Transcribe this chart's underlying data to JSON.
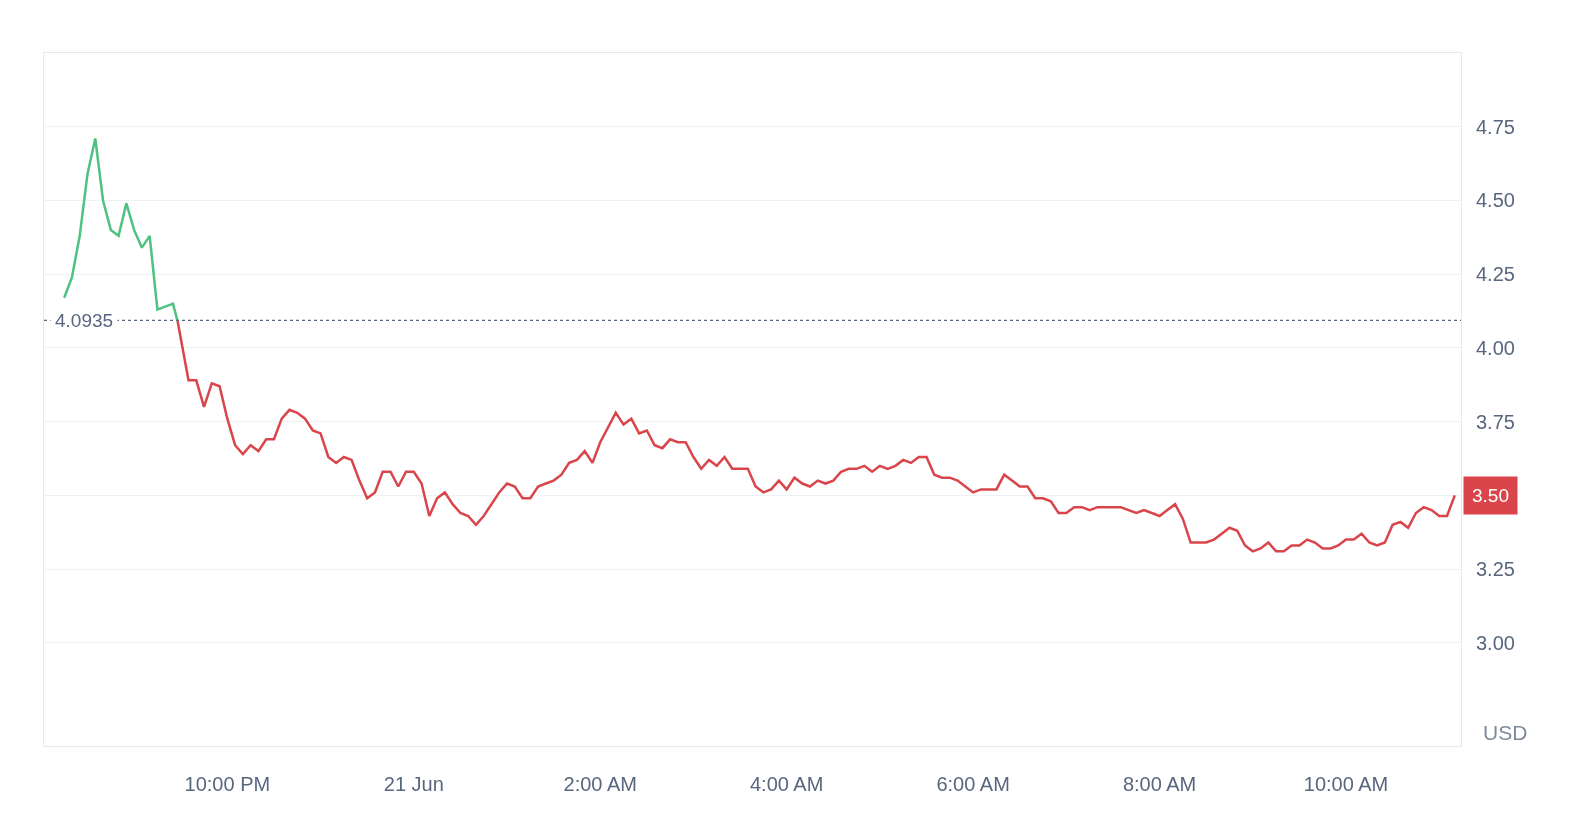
{
  "chart_data": {
    "type": "line",
    "series": [
      {
        "color": "#4fc281",
        "x": [
          "--06-20T20:15",
          "--06-20T20:20",
          "--06-20T20:25",
          "--06-20T20:30",
          "--06-20T20:35",
          "--06-20T20:40",
          "--06-20T20:45",
          "--06-20T20:50",
          "--06-20T20:55",
          "--06-20T21:00",
          "--06-20T21:05",
          "--06-20T21:10",
          "--06-20T21:15",
          "--06-20T21:20",
          "--06-20T21:25",
          "--06-20T21:28"
        ],
        "values": [
          4.17,
          4.24,
          4.38,
          4.59,
          4.71,
          4.5,
          4.4,
          4.38,
          4.49,
          4.4,
          4.34,
          4.38,
          4.13,
          4.14,
          4.15,
          4.09
        ]
      },
      {
        "color": "#d9454a",
        "x": [
          "--06-20T21:28",
          "--06-20T21:35",
          "--06-20T21:40",
          "--06-20T21:45",
          "--06-20T21:50",
          "--06-20T21:55",
          "--06-20T22:00",
          "--06-20T22:05",
          "--06-20T22:10",
          "--06-20T22:15",
          "--06-20T22:20",
          "--06-20T22:25",
          "--06-20T22:30",
          "--06-20T22:35",
          "--06-20T22:40",
          "--06-20T22:45",
          "--06-20T22:50",
          "--06-20T22:55",
          "--06-20T23:00",
          "--06-20T23:05",
          "--06-20T23:10",
          "--06-20T23:15",
          "--06-20T23:20",
          "--06-20T23:25",
          "--06-20T23:30",
          "--06-20T23:35",
          "--06-20T23:40",
          "--06-20T23:45",
          "--06-20T23:50",
          "--06-20T23:55",
          "--06-21T00:00",
          "--06-21T00:05",
          "--06-21T00:10",
          "--06-21T00:15",
          "--06-21T00:20",
          "--06-21T00:25",
          "--06-21T00:30",
          "--06-21T00:35",
          "--06-21T00:40",
          "--06-21T00:45",
          "--06-21T00:50",
          "--06-21T00:55",
          "--06-21T01:00",
          "--06-21T01:05",
          "--06-21T01:10",
          "--06-21T01:15",
          "--06-21T01:20",
          "--06-21T01:25",
          "--06-21T01:30",
          "--06-21T01:35",
          "--06-21T01:40",
          "--06-21T01:45",
          "--06-21T01:50",
          "--06-21T01:55",
          "--06-21T02:00",
          "--06-21T02:05",
          "--06-21T02:10",
          "--06-21T02:15",
          "--06-21T02:20",
          "--06-21T02:25",
          "--06-21T02:30",
          "--06-21T02:35",
          "--06-21T02:40",
          "--06-21T02:45",
          "--06-21T02:50",
          "--06-21T02:55",
          "--06-21T03:00",
          "--06-21T03:05",
          "--06-21T03:10",
          "--06-21T03:15",
          "--06-21T03:20",
          "--06-21T03:25",
          "--06-21T03:30",
          "--06-21T03:35",
          "--06-21T03:40",
          "--06-21T03:45",
          "--06-21T03:50",
          "--06-21T03:55",
          "--06-21T04:00",
          "--06-21T04:05",
          "--06-21T04:10",
          "--06-21T04:15",
          "--06-21T04:20",
          "--06-21T04:25",
          "--06-21T04:30",
          "--06-21T04:35",
          "--06-21T04:40",
          "--06-21T04:45",
          "--06-21T04:50",
          "--06-21T04:55",
          "--06-21T05:00",
          "--06-21T05:05",
          "--06-21T05:10",
          "--06-21T05:15",
          "--06-21T05:20",
          "--06-21T05:25",
          "--06-21T05:30",
          "--06-21T05:35",
          "--06-21T05:40",
          "--06-21T05:45",
          "--06-21T05:50",
          "--06-21T05:55",
          "--06-21T06:00",
          "--06-21T06:05",
          "--06-21T06:10",
          "--06-21T06:15",
          "--06-21T06:20",
          "--06-21T06:25",
          "--06-21T06:30",
          "--06-21T06:35",
          "--06-21T06:40",
          "--06-21T06:45",
          "--06-21T06:50",
          "--06-21T06:55",
          "--06-21T07:00",
          "--06-21T07:05",
          "--06-21T07:10",
          "--06-21T07:15",
          "--06-21T07:20",
          "--06-21T07:25",
          "--06-21T07:30",
          "--06-21T07:35",
          "--06-21T07:40",
          "--06-21T07:45",
          "--06-21T07:50",
          "--06-21T07:55",
          "--06-21T08:00",
          "--06-21T08:05",
          "--06-21T08:10",
          "--06-21T08:15",
          "--06-21T08:20",
          "--06-21T08:25",
          "--06-21T08:30",
          "--06-21T08:35",
          "--06-21T08:40",
          "--06-21T08:45",
          "--06-21T08:50",
          "--06-21T08:55",
          "--06-21T09:00",
          "--06-21T09:05",
          "--06-21T09:10",
          "--06-21T09:15",
          "--06-21T09:20",
          "--06-21T09:25",
          "--06-21T09:30",
          "--06-21T09:35",
          "--06-21T09:40",
          "--06-21T09:45",
          "--06-21T09:50",
          "--06-21T09:55",
          "--06-21T10:00",
          "--06-21T10:05",
          "--06-21T10:10",
          "--06-21T10:15",
          "--06-21T10:20",
          "--06-21T10:25",
          "--06-21T10:30",
          "--06-21T10:35",
          "--06-21T10:40",
          "--06-21T10:45",
          "--06-21T10:50",
          "--06-21T10:55",
          "--06-21T11:00",
          "--06-21T11:05",
          "--06-21T11:10"
        ],
        "values": [
          4.09,
          3.89,
          3.89,
          3.8,
          3.88,
          3.87,
          3.76,
          3.67,
          3.64,
          3.67,
          3.65,
          3.69,
          3.69,
          3.76,
          3.79,
          3.78,
          3.76,
          3.72,
          3.71,
          3.63,
          3.61,
          3.63,
          3.62,
          3.55,
          3.49,
          3.51,
          3.58,
          3.58,
          3.53,
          3.58,
          3.58,
          3.54,
          3.43,
          3.49,
          3.51,
          3.47,
          3.44,
          3.43,
          3.4,
          3.43,
          3.47,
          3.51,
          3.54,
          3.53,
          3.49,
          3.49,
          3.53,
          3.54,
          3.55,
          3.57,
          3.61,
          3.62,
          3.65,
          3.61,
          3.68,
          3.73,
          3.78,
          3.74,
          3.76,
          3.71,
          3.72,
          3.67,
          3.66,
          3.69,
          3.68,
          3.68,
          3.63,
          3.59,
          3.62,
          3.6,
          3.63,
          3.59,
          3.59,
          3.59,
          3.53,
          3.51,
          3.52,
          3.55,
          3.52,
          3.56,
          3.54,
          3.53,
          3.55,
          3.54,
          3.55,
          3.58,
          3.59,
          3.59,
          3.6,
          3.58,
          3.6,
          3.59,
          3.6,
          3.62,
          3.61,
          3.63,
          3.63,
          3.57,
          3.56,
          3.56,
          3.55,
          3.53,
          3.51,
          3.52,
          3.52,
          3.52,
          3.57,
          3.55,
          3.53,
          3.53,
          3.49,
          3.49,
          3.48,
          3.44,
          3.44,
          3.46,
          3.46,
          3.45,
          3.46,
          3.46,
          3.46,
          3.46,
          3.45,
          3.44,
          3.45,
          3.44,
          3.43,
          3.45,
          3.47,
          3.42,
          3.34,
          3.34,
          3.34,
          3.35,
          3.37,
          3.39,
          3.38,
          3.33,
          3.31,
          3.32,
          3.34,
          3.31,
          3.31,
          3.33,
          3.33,
          3.35,
          3.34,
          3.32,
          3.32,
          3.33,
          3.35,
          3.35,
          3.37,
          3.34,
          3.33,
          3.34,
          3.4,
          3.41,
          3.39,
          3.44,
          3.46,
          3.45,
          3.43,
          3.43,
          3.5
        ]
      }
    ],
    "xlim": [
      "--06-20T20:02",
      "--06-21T11:14"
    ],
    "xticks": [
      {
        "value": "--06-20T22:00",
        "label": "10:00 PM"
      },
      {
        "value": "--06-21T00:00",
        "label": "21 Jun"
      },
      {
        "value": "--06-21T02:00",
        "label": "2:00 AM"
      },
      {
        "value": "--06-21T04:00",
        "label": "4:00 AM"
      },
      {
        "value": "--06-21T06:00",
        "label": "6:00 AM"
      },
      {
        "value": "--06-21T08:00",
        "label": "8:00 AM"
      },
      {
        "value": "--06-21T10:00",
        "label": "10:00 AM"
      }
    ],
    "ylim": [
      2.65,
      5.0
    ],
    "yticks": [
      {
        "value": 3,
        "label": "3.00"
      },
      {
        "value": 3.25,
        "label": "3.25"
      },
      {
        "value": 3.5,
        "label": null
      },
      {
        "value": 3.75,
        "label": "3.75"
      },
      {
        "value": 4,
        "label": "4.00"
      },
      {
        "value": 4.25,
        "label": "4.25"
      },
      {
        "value": 4.5,
        "label": "4.50"
      },
      {
        "value": 4.75,
        "label": "4.75"
      }
    ],
    "ref_lines": [
      {
        "axis": "y",
        "value": 4.0935,
        "label": "4.0935",
        "color": "#58667e",
        "line_style": "dotted"
      }
    ],
    "annotations": [
      "3.50",
      "USD"
    ],
    "grid": "y",
    "line_style": "solid",
    "marker": "none"
  }
}
